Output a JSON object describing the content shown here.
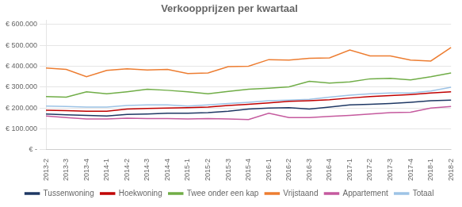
{
  "chart_data": {
    "type": "line",
    "title": "Verkoopprijzen per kwartaal",
    "categories": [
      "2013-2",
      "2013-3",
      "2013-4",
      "2014-1",
      "2014-2",
      "2014-3",
      "2014-4",
      "2015-1",
      "2015-2",
      "2015-3",
      "2015-4",
      "2016-1",
      "2016-2",
      "2016-3",
      "2016-4",
      "2017-1",
      "2017-2",
      "2017-3",
      "2017-4",
      "2018-1",
      "2018-2"
    ],
    "series": [
      {
        "name": "Tussenwoning",
        "color": "#1F3864",
        "values": [
          172000,
          168000,
          165000,
          162000,
          170000,
          172000,
          175000,
          175000,
          178000,
          185000,
          195000,
          200000,
          202000,
          195000,
          205000,
          215000,
          218000,
          222000,
          228000,
          235000,
          238000
        ]
      },
      {
        "name": "Hoekwoning",
        "color": "#C00000",
        "values": [
          190000,
          188000,
          185000,
          185000,
          195000,
          198000,
          200000,
          202000,
          205000,
          212000,
          218000,
          225000,
          232000,
          235000,
          240000,
          248000,
          255000,
          260000,
          265000,
          272000,
          278000
        ]
      },
      {
        "name": "Twee onder een kap",
        "color": "#70AD47",
        "values": [
          255000,
          252000,
          278000,
          268000,
          278000,
          290000,
          285000,
          278000,
          268000,
          280000,
          290000,
          295000,
          302000,
          328000,
          320000,
          325000,
          340000,
          342000,
          335000,
          350000,
          368000
        ]
      },
      {
        "name": "Vrijstaand",
        "color": "#ED7D31",
        "values": [
          392000,
          385000,
          350000,
          380000,
          388000,
          382000,
          385000,
          365000,
          368000,
          398000,
          400000,
          432000,
          430000,
          438000,
          440000,
          478000,
          450000,
          450000,
          430000,
          425000,
          490000
        ]
      },
      {
        "name": "Appartement",
        "color": "#C55A9E",
        "values": [
          162000,
          155000,
          148000,
          148000,
          152000,
          150000,
          150000,
          148000,
          150000,
          148000,
          145000,
          175000,
          155000,
          155000,
          160000,
          165000,
          172000,
          178000,
          180000,
          200000,
          208000
        ]
      },
      {
        "name": "Totaal",
        "color": "#9DC3E6",
        "values": [
          210000,
          208000,
          205000,
          205000,
          212000,
          215000,
          215000,
          210000,
          215000,
          222000,
          228000,
          235000,
          238000,
          242000,
          252000,
          262000,
          268000,
          272000,
          272000,
          282000,
          300000
        ]
      }
    ],
    "ylim": [
      0,
      620000
    ],
    "yticks": [
      {
        "value": 0,
        "label": "€ -"
      },
      {
        "value": 100000,
        "label": "€ 100.000"
      },
      {
        "value": 200000,
        "label": "€ 200.000"
      },
      {
        "value": 300000,
        "label": "€ 300.000"
      },
      {
        "value": 400000,
        "label": "€ 400.000"
      },
      {
        "value": 500000,
        "label": "€ 500.000"
      },
      {
        "value": 600000,
        "label": "€ 600.000"
      }
    ],
    "grid": true,
    "legend": "bottom"
  }
}
